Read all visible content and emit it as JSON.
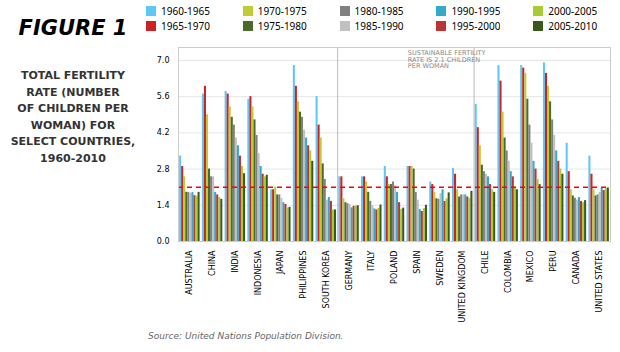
{
  "chart_data": {
    "type": "bar",
    "title": "FIGURE 1",
    "subtitle": "TOTAL FERTILITY\nRATE (NUMBER\nOF CHILDREN PER\nWOMAN) FOR\nSELECT COUNTRIES,\n1960-2010",
    "source": "Source: United Nations Population Division.",
    "annotation": "SUSTAINABLE FERTILITY\nRATE IS 2.1 CHILDREN\nPER WOMAN",
    "categories": [
      "AUSTRALIA",
      "CHINA",
      "INDIA",
      "INDONESIA",
      "JAPAN",
      "PHILIPPINES",
      "SOUTH KOREA",
      "GERMANY",
      "ITALY",
      "POLAND",
      "SPAIN",
      "SWEDEN",
      "UNITED KINGDOM",
      "CHILE",
      "COLOMBIA",
      "MEXICO",
      "PERU",
      "CANADA",
      "UNITED STATES"
    ],
    "series": [
      {
        "name": "1960-1965",
        "color": "#5BC8F5",
        "values": [
          3.3,
          5.7,
          5.8,
          5.5,
          2.0,
          6.8,
          5.6,
          2.5,
          2.5,
          2.9,
          2.9,
          2.3,
          2.82,
          5.3,
          6.8,
          6.8,
          6.9,
          3.8,
          3.3
        ]
      },
      {
        "name": "1965-1970",
        "color": "#CC2222",
        "values": [
          2.9,
          6.0,
          5.7,
          5.6,
          2.0,
          6.0,
          4.5,
          2.5,
          2.5,
          2.5,
          2.9,
          2.2,
          2.6,
          4.4,
          6.2,
          6.7,
          6.5,
          2.7,
          2.6
        ]
      },
      {
        "name": "1970-1975",
        "color": "#BFCC33",
        "values": [
          2.5,
          4.9,
          5.2,
          5.2,
          2.1,
          5.4,
          4.0,
          1.65,
          2.3,
          2.2,
          2.9,
          1.9,
          2.0,
          3.7,
          5.0,
          6.5,
          6.0,
          2.0,
          2.0
        ]
      },
      {
        "name": "1975-1980",
        "color": "#4A6B2A",
        "values": [
          1.9,
          2.8,
          4.8,
          4.7,
          1.8,
          5.0,
          3.0,
          1.5,
          1.9,
          2.2,
          2.8,
          1.65,
          1.72,
          2.95,
          4.0,
          5.5,
          5.4,
          1.76,
          1.76
        ]
      },
      {
        "name": "1980-1985",
        "color": "#808080",
        "values": [
          1.9,
          2.5,
          4.5,
          4.1,
          1.8,
          4.8,
          2.4,
          1.46,
          1.55,
          2.3,
          1.9,
          1.63,
          1.8,
          2.7,
          3.5,
          4.5,
          4.7,
          1.67,
          1.8
        ]
      },
      {
        "name": "1985-1990",
        "color": "#C0C0C0",
        "values": [
          1.86,
          2.5,
          4.0,
          3.4,
          1.66,
          4.3,
          1.6,
          1.43,
          1.38,
          2.15,
          1.6,
          1.85,
          1.8,
          2.6,
          3.1,
          3.8,
          4.1,
          1.6,
          1.9
        ]
      },
      {
        "name": "1990-1995",
        "color": "#33AACC",
        "values": [
          1.89,
          1.9,
          3.7,
          2.9,
          1.5,
          4.0,
          1.7,
          1.3,
          1.26,
          1.9,
          1.23,
          2.0,
          1.8,
          2.5,
          2.7,
          3.1,
          3.5,
          1.7,
          2.05
        ]
      },
      {
        "name": "1995-2000",
        "color": "#BB3333",
        "values": [
          1.77,
          1.8,
          3.3,
          2.6,
          1.43,
          3.7,
          1.55,
          1.36,
          1.22,
          1.5,
          1.16,
          1.55,
          1.72,
          2.2,
          2.5,
          2.8,
          3.1,
          1.55,
          1.97
        ]
      },
      {
        "name": "2000-2005",
        "color": "#AACC33",
        "values": [
          1.75,
          1.7,
          2.9,
          2.5,
          1.3,
          3.5,
          1.22,
          1.37,
          1.28,
          1.24,
          1.27,
          1.65,
          1.66,
          2.0,
          2.1,
          2.4,
          2.8,
          1.5,
          2.04
        ]
      },
      {
        "name": "2005-2010",
        "color": "#3A5A1A",
        "values": [
          1.9,
          1.63,
          2.62,
          2.56,
          1.32,
          3.1,
          1.22,
          1.38,
          1.41,
          1.29,
          1.4,
          1.88,
          1.94,
          1.9,
          2.0,
          2.2,
          2.6,
          1.58,
          2.07
        ]
      }
    ],
    "ylim": [
      0.0,
      7.5
    ],
    "yticks": [
      {
        "value": 0,
        "label": "0.0"
      },
      1.4,
      2.8,
      4.2,
      5.6,
      {
        "value": 7,
        "label": "7.0"
      }
    ],
    "grid": true,
    "legend": "top",
    "reference_line": {
      "value": 2.1,
      "color": "red",
      "line_style": "dashed"
    },
    "separators": [
      7,
      13
    ]
  }
}
